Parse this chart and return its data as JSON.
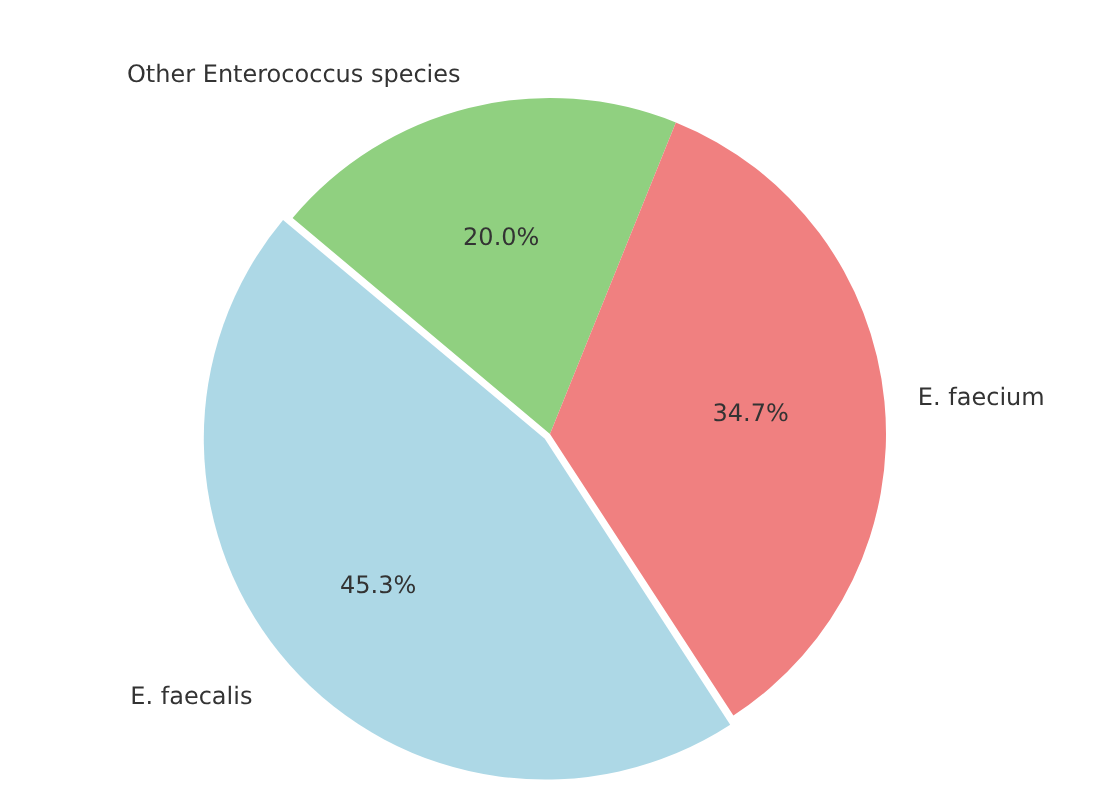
{
  "chart_data": {
    "type": "pie",
    "categories": [
      "E. faecalis",
      "E. faecium",
      "Other Enterococcus species"
    ],
    "values": [
      45.3,
      34.7,
      20.0
    ],
    "colors": [
      "#add8e6",
      "#f08080",
      "#90d080"
    ],
    "value_labels": [
      "45.3%",
      "34.7%",
      "20.0%"
    ],
    "legend": false
  }
}
